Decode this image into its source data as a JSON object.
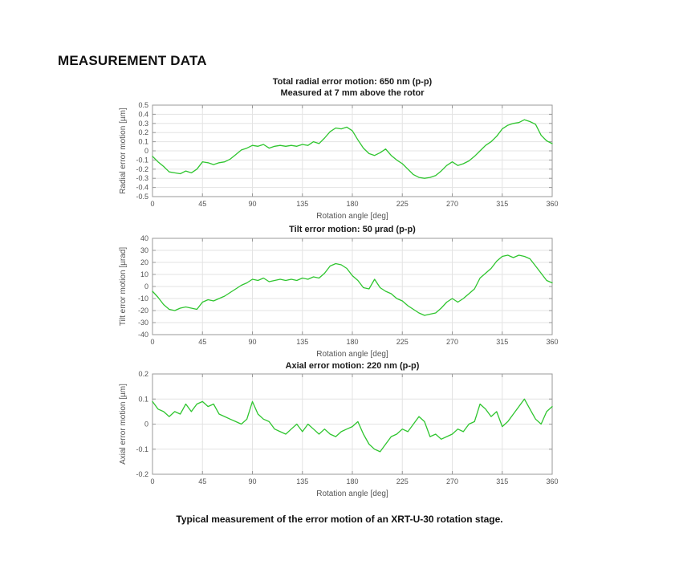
{
  "page": {
    "heading": "MEASUREMENT DATA",
    "caption": "Typical measurement of the error motion of an XRT-U-30 rotation stage."
  },
  "colors": {
    "line": "#2fc52f",
    "grid": "#e3e3e3",
    "axis": "#999999",
    "tick_text": "#545454",
    "title_text": "#1a1a1a",
    "background": "#ffffff"
  },
  "chart_data": [
    {
      "type": "line",
      "title_lines": [
        "Total radial error motion: 650 nm (p-p)",
        "Measured at 7 mm above the rotor"
      ],
      "xlabel": "Rotation angle [deg]",
      "ylabel": "Radial error motion [µm]",
      "xlim": [
        0,
        360
      ],
      "ylim": [
        -0.5,
        0.5
      ],
      "grid": true,
      "legend": "none",
      "xticks": [
        0,
        45,
        90,
        135,
        180,
        225,
        270,
        315,
        360
      ],
      "ytick_values": [
        0.5,
        0.4,
        0.3,
        0.2,
        0.1,
        0,
        -0.1,
        -0.2,
        -0.3,
        -0.4,
        -0.5
      ],
      "ytick_labels": [
        "0.5",
        "0.4",
        "0.3",
        "0.2",
        "0.1",
        "0",
        "-0.1",
        "-0.2",
        "-0.3",
        "-0.4",
        "-0.5"
      ],
      "series": [
        {
          "name": "radial error motion",
          "x": [
            0,
            5,
            10,
            15,
            20,
            25,
            30,
            35,
            40,
            45,
            50,
            55,
            60,
            65,
            70,
            75,
            80,
            85,
            90,
            95,
            100,
            105,
            110,
            115,
            120,
            125,
            130,
            135,
            140,
            145,
            150,
            155,
            160,
            165,
            170,
            175,
            180,
            185,
            190,
            195,
            200,
            205,
            210,
            215,
            220,
            225,
            230,
            235,
            240,
            245,
            250,
            255,
            260,
            265,
            270,
            275,
            280,
            285,
            290,
            295,
            300,
            305,
            310,
            315,
            320,
            325,
            330,
            335,
            340,
            345,
            350,
            355,
            360
          ],
          "y": [
            -0.06,
            -0.12,
            -0.17,
            -0.23,
            -0.24,
            -0.25,
            -0.22,
            -0.24,
            -0.2,
            -0.12,
            -0.13,
            -0.15,
            -0.13,
            -0.12,
            -0.09,
            -0.04,
            0.01,
            0.03,
            0.06,
            0.05,
            0.07,
            0.03,
            0.05,
            0.06,
            0.05,
            0.06,
            0.05,
            0.07,
            0.06,
            0.1,
            0.08,
            0.14,
            0.21,
            0.25,
            0.24,
            0.26,
            0.22,
            0.12,
            0.03,
            -0.03,
            -0.05,
            -0.02,
            0.02,
            -0.05,
            -0.1,
            -0.14,
            -0.2,
            -0.26,
            -0.29,
            -0.3,
            -0.29,
            -0.27,
            -0.22,
            -0.16,
            -0.12,
            -0.16,
            -0.14,
            -0.11,
            -0.06,
            0,
            0.06,
            0.1,
            0.16,
            0.24,
            0.28,
            0.3,
            0.31,
            0.34,
            0.32,
            0.29,
            0.17,
            0.11,
            0.08
          ]
        }
      ]
    },
    {
      "type": "line",
      "title_lines": [
        "Tilt error motion: 50 µrad (p-p)"
      ],
      "xlabel": "Rotation angle [deg]",
      "ylabel": "Tilt error motion [µrad]",
      "xlim": [
        0,
        360
      ],
      "ylim": [
        -40,
        40
      ],
      "grid": true,
      "legend": "none",
      "xticks": [
        0,
        45,
        90,
        135,
        180,
        225,
        270,
        315,
        360
      ],
      "ytick_values": [
        40,
        30,
        20,
        10,
        0,
        -10,
        -20,
        -30,
        -40
      ],
      "ytick_labels": [
        "40",
        "30",
        "20",
        "10",
        "0",
        "-10",
        "-20",
        "-30",
        "-40"
      ],
      "series": [
        {
          "name": "tilt error motion",
          "x": [
            0,
            5,
            10,
            15,
            20,
            25,
            30,
            35,
            40,
            45,
            50,
            55,
            60,
            65,
            70,
            75,
            80,
            85,
            90,
            95,
            100,
            105,
            110,
            115,
            120,
            125,
            130,
            135,
            140,
            145,
            150,
            155,
            160,
            165,
            170,
            175,
            180,
            185,
            190,
            195,
            200,
            205,
            210,
            215,
            220,
            225,
            230,
            235,
            240,
            245,
            250,
            255,
            260,
            265,
            270,
            275,
            280,
            285,
            290,
            295,
            300,
            305,
            310,
            315,
            320,
            325,
            330,
            335,
            340,
            345,
            350,
            355,
            360
          ],
          "y": [
            -4,
            -9,
            -15,
            -19,
            -20,
            -18,
            -17,
            -18,
            -19,
            -13,
            -11,
            -12,
            -10,
            -8,
            -5,
            -2,
            1,
            3,
            6,
            5,
            7,
            4,
            5,
            6,
            5,
            6,
            5,
            7,
            6,
            8,
            7,
            11,
            17,
            19,
            18,
            15,
            9,
            5,
            -1,
            -2,
            6,
            -1,
            -4,
            -6,
            -10,
            -12,
            -16,
            -19,
            -22,
            -24,
            -23,
            -22,
            -18,
            -13,
            -10,
            -13,
            -10,
            -6,
            -2,
            7,
            11,
            15,
            21,
            25,
            26,
            24,
            26,
            25,
            23,
            17,
            11,
            5,
            3
          ]
        }
      ]
    },
    {
      "type": "line",
      "title_lines": [
        "Axial error motion: 220 nm (p-p)"
      ],
      "xlabel": "Rotation angle [deg]",
      "ylabel": "Axial error motion [µm]",
      "xlim": [
        0,
        360
      ],
      "ylim": [
        -0.2,
        0.2
      ],
      "grid": true,
      "legend": "none",
      "xticks": [
        0,
        45,
        90,
        135,
        180,
        225,
        270,
        315,
        360
      ],
      "ytick_values": [
        0.2,
        0.1,
        0,
        -0.1,
        -0.2
      ],
      "ytick_labels": [
        "0.2",
        "0.1",
        "0",
        "-0.1",
        "-0.2"
      ],
      "series": [
        {
          "name": "axial error motion",
          "x": [
            0,
            5,
            10,
            15,
            20,
            25,
            30,
            35,
            40,
            45,
            50,
            55,
            60,
            65,
            70,
            75,
            80,
            85,
            90,
            95,
            100,
            105,
            110,
            115,
            120,
            125,
            130,
            135,
            140,
            145,
            150,
            155,
            160,
            165,
            170,
            175,
            180,
            185,
            190,
            195,
            200,
            205,
            210,
            215,
            220,
            225,
            230,
            235,
            240,
            245,
            250,
            255,
            260,
            265,
            270,
            275,
            280,
            285,
            290,
            295,
            300,
            305,
            310,
            315,
            320,
            325,
            330,
            335,
            340,
            345,
            350,
            355,
            360
          ],
          "y": [
            0.09,
            0.06,
            0.05,
            0.03,
            0.05,
            0.04,
            0.08,
            0.05,
            0.08,
            0.09,
            0.07,
            0.08,
            0.04,
            0.03,
            0.02,
            0.01,
            0,
            0.02,
            0.09,
            0.04,
            0.02,
            0.01,
            -0.02,
            -0.03,
            -0.04,
            -0.02,
            0,
            -0.03,
            0,
            -0.02,
            -0.04,
            -0.02,
            -0.04,
            -0.05,
            -0.03,
            -0.02,
            -0.01,
            0.01,
            -0.04,
            -0.08,
            -0.1,
            -0.11,
            -0.08,
            -0.05,
            -0.04,
            -0.02,
            -0.03,
            0,
            0.03,
            0.01,
            -0.05,
            -0.04,
            -0.06,
            -0.05,
            -0.04,
            -0.02,
            -0.03,
            0,
            0.01,
            0.08,
            0.06,
            0.03,
            0.05,
            -0.01,
            0.01,
            0.04,
            0.07,
            0.1,
            0.06,
            0.02,
            0,
            0.05,
            0.07
          ]
        }
      ]
    }
  ]
}
